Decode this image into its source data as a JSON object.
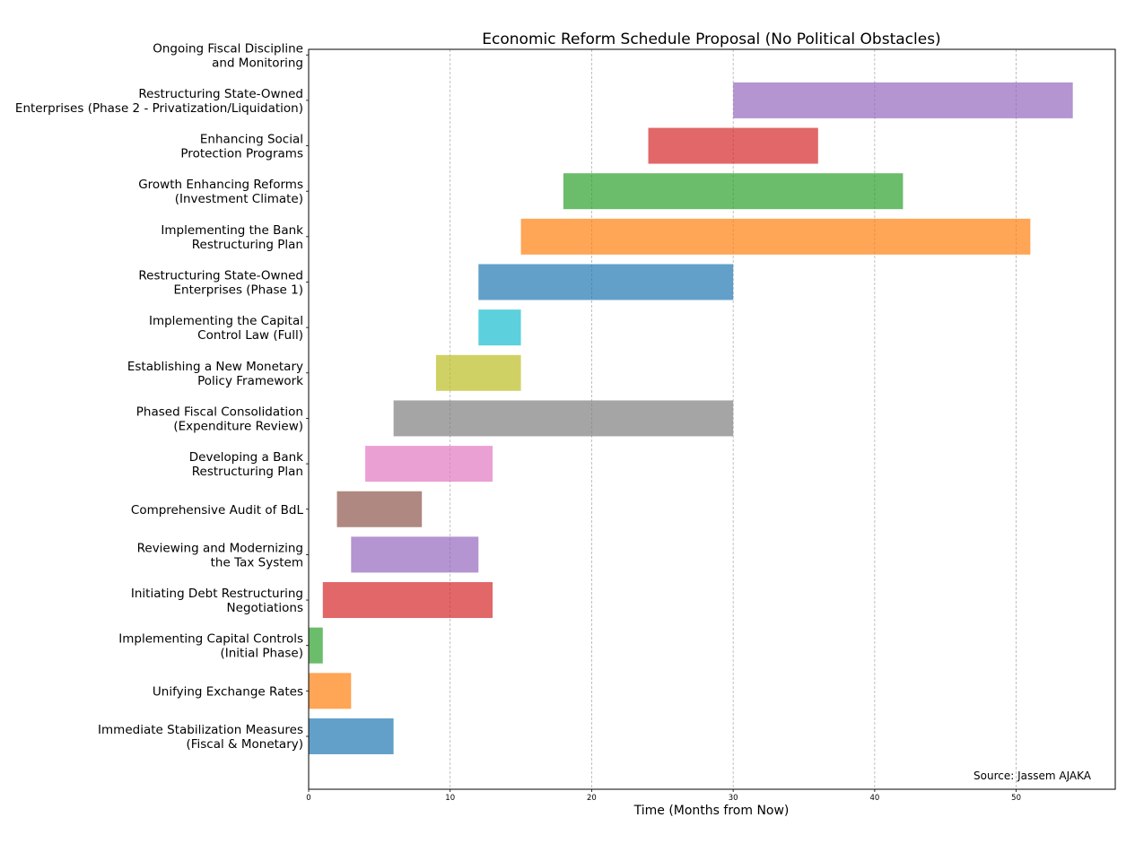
{
  "chart_data": {
    "type": "gantt",
    "title": "Economic Reform Schedule Proposal (No Political Obstacles)",
    "xlabel": "Time (Months from Now)",
    "ylabel": "",
    "xlim": [
      0,
      57
    ],
    "xticks": [
      0,
      10,
      20,
      30,
      40,
      50
    ],
    "grid": "x-dashed",
    "annotation": "Source: Jassem AJAKA",
    "tasks": [
      {
        "name": "Immediate Stabilization Measures\n(Fiscal & Monetary)",
        "start": 0,
        "end": 6,
        "color": "#1f77b4"
      },
      {
        "name": "Unifying Exchange Rates",
        "start": 0,
        "end": 3,
        "color": "#ff7f0e"
      },
      {
        "name": "Implementing Capital Controls\n(Initial Phase)",
        "start": 0,
        "end": 1,
        "color": "#2ca02c"
      },
      {
        "name": "Initiating Debt Restructuring\nNegotiations",
        "start": 1,
        "end": 13,
        "color": "#d62728"
      },
      {
        "name": "Reviewing and Modernizing\nthe Tax System",
        "start": 3,
        "end": 12,
        "color": "#9467bd"
      },
      {
        "name": "Comprehensive Audit of BdL",
        "start": 2,
        "end": 8,
        "color": "#8c564b"
      },
      {
        "name": "Developing a Bank\nRestructuring Plan",
        "start": 4,
        "end": 13,
        "color": "#e377c2"
      },
      {
        "name": "Phased Fiscal Consolidation\n(Expenditure Review)",
        "start": 6,
        "end": 30,
        "color": "#7f7f7f"
      },
      {
        "name": "Establishing a New Monetary\nPolicy Framework",
        "start": 9,
        "end": 15,
        "color": "#bcbd22"
      },
      {
        "name": "Implementing the Capital\nControl Law (Full)",
        "start": 12,
        "end": 15,
        "color": "#17becf"
      },
      {
        "name": "Restructuring State-Owned\nEnterprises (Phase 1)",
        "start": 12,
        "end": 30,
        "color": "#1f77b4"
      },
      {
        "name": "Implementing the Bank\nRestructuring Plan",
        "start": 15,
        "end": 51,
        "color": "#ff7f0e"
      },
      {
        "name": "Growth Enhancing Reforms\n(Investment Climate)",
        "start": 18,
        "end": 42,
        "color": "#2ca02c"
      },
      {
        "name": "Enhancing Social\nProtection Programs",
        "start": 24,
        "end": 36,
        "color": "#d62728"
      },
      {
        "name": "Restructuring State-Owned\nEnterprises (Phase 2 - Privatization/Liquidation)",
        "start": 30,
        "end": 54,
        "color": "#9467bd"
      },
      {
        "name": "Ongoing Fiscal Discipline\nand Monitoring",
        "start": null,
        "end": null,
        "color": "#8c564b"
      }
    ]
  }
}
